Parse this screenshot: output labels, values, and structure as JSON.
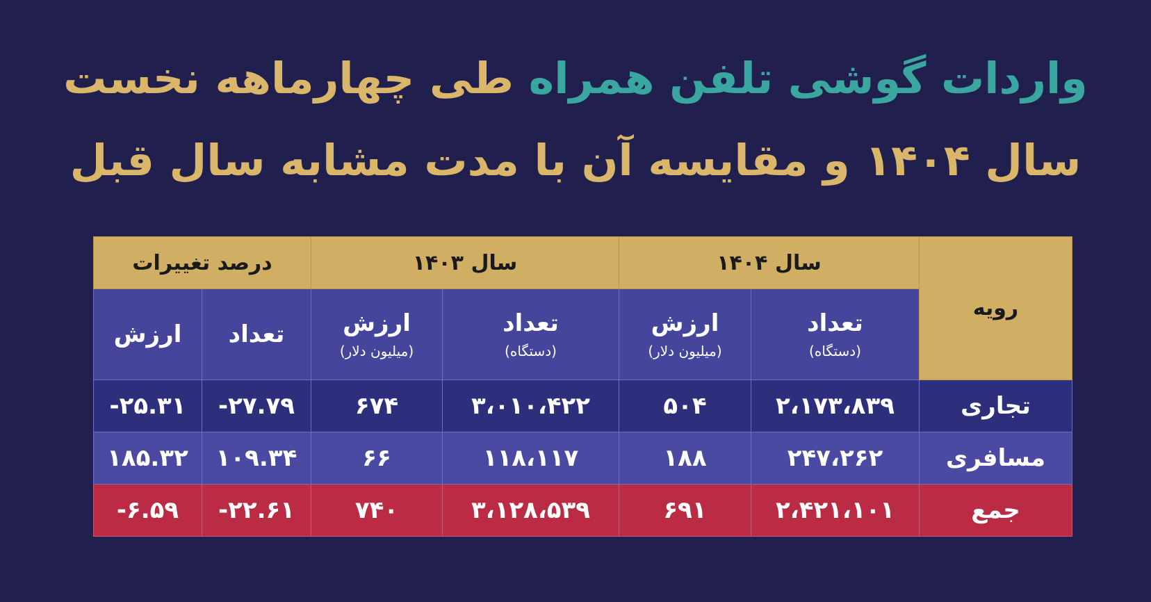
{
  "title": {
    "line1_highlight": "واردات گوشی تلفن همراه",
    "line1_rest": "طی چهارماهه نخست",
    "line2": "سال ۱۴۰۴ و مقایسه آن با مدت مشابه سال قبل"
  },
  "colors": {
    "background": "#211f4e",
    "gold": "#d9b66a",
    "teal": "#3aa6a0",
    "header": "#d0ae63",
    "subheader": "#45469b",
    "row1": "#2d2e7c",
    "row2": "#4a4aa2",
    "total_row": "#bb2b43"
  },
  "table": {
    "groups": {
      "change": "درصد تغییرات",
      "y1403": "سال ۱۴۰۳",
      "y1404": "سال ۱۴۰۴",
      "route": "رویه"
    },
    "sub": {
      "count": "تعداد",
      "value": "ارزش",
      "count_unit": "(دستگاه)",
      "value_unit": "(میلیون دلار)"
    },
    "rows": [
      {
        "label": "تجاری",
        "c1404": "۲،۱۷۳،۸۳۹",
        "v1404": "۵۰۴",
        "c1403": "۳،۰۱۰،۴۲۲",
        "v1403": "۶۷۴",
        "pc": "-۲۷.۷۹",
        "pv": "-۲۵.۳۱"
      },
      {
        "label": "مسافری",
        "c1404": "۲۴۷،۲۶۲",
        "v1404": "۱۸۸",
        "c1403": "۱۱۸،۱۱۷",
        "v1403": "۶۶",
        "pc": "۱۰۹.۳۴",
        "pv": "۱۸۵.۳۲"
      },
      {
        "label": "جمع",
        "c1404": "۲،۴۲۱،۱۰۱",
        "v1404": "۶۹۱",
        "c1403": "۳،۱۲۸،۵۳۹",
        "v1403": "۷۴۰",
        "pc": "-۲۲.۶۱",
        "pv": "-۶.۵۹"
      }
    ]
  }
}
